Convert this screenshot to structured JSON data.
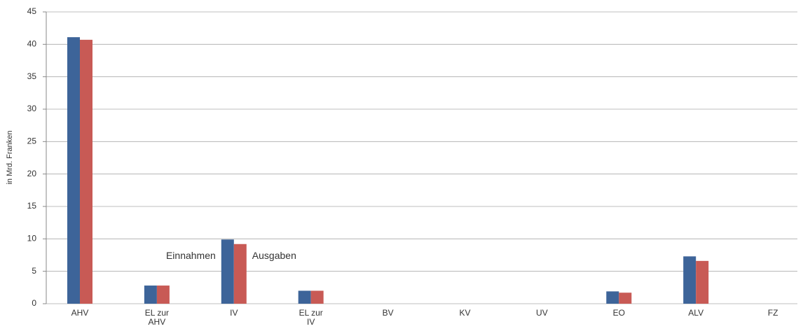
{
  "chart_data": {
    "type": "bar",
    "y_label": "in Mrd. Franken",
    "categories": [
      "AHV",
      "EL zur AHV",
      "IV",
      "EL zur IV",
      "BV",
      "KV",
      "UV",
      "EO",
      "ALV",
      "FZ"
    ],
    "series": [
      {
        "name": "Einnahmen",
        "color": "#3d6499",
        "values": [
          41.1,
          2.8,
          9.9,
          2.0,
          null,
          null,
          null,
          1.9,
          7.3,
          null
        ]
      },
      {
        "name": "Ausgaben",
        "color": "#c85a55",
        "values": [
          40.7,
          2.8,
          9.2,
          2.0,
          null,
          null,
          null,
          1.7,
          6.6,
          null
        ]
      }
    ],
    "ylim": [
      0,
      45
    ],
    "yticks": [
      0,
      5,
      10,
      15,
      20,
      25,
      30,
      35,
      40,
      45
    ],
    "grid": true
  }
}
